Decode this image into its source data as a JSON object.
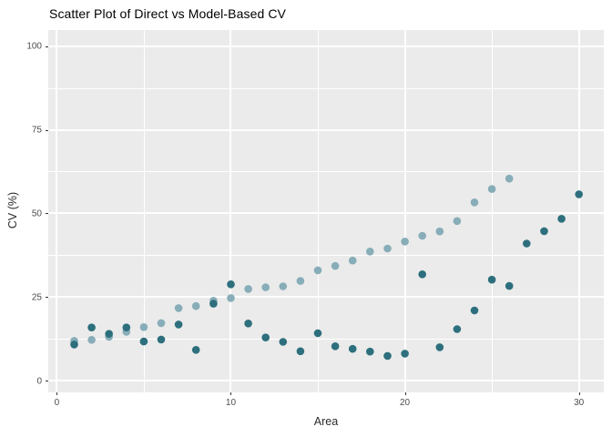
{
  "chart_data": {
    "type": "scatter",
    "title": "Scatter Plot of Direct vs Model-Based CV",
    "xlabel": "Area",
    "ylabel": "CV (%)",
    "xlim": [
      -0.49,
      31.43
    ],
    "ylim": [
      -3.5,
      104.8
    ],
    "x_ticks": [
      0,
      10,
      20,
      30
    ],
    "y_ticks": [
      0,
      25,
      50,
      75,
      100
    ],
    "x_minor_ticks": [
      5,
      15,
      25
    ],
    "y_minor_ticks": [
      12.5,
      37.5,
      62.5,
      87.5
    ],
    "grid": true,
    "legend_position": "none",
    "panel_background": "#ebebeb",
    "gridline_color": "#ffffff",
    "series": [
      {
        "name": "Model-Based",
        "color": "#87adb8",
        "x": [
          1,
          2,
          3,
          4,
          5,
          6,
          7,
          8,
          9,
          10,
          11,
          12,
          13,
          14,
          15,
          16,
          17,
          18,
          19,
          20,
          21,
          22,
          23,
          24,
          25,
          26
        ],
        "y": [
          11.9,
          12.2,
          13.1,
          14.6,
          16.0,
          17.2,
          21.7,
          22.3,
          23.9,
          24.7,
          27.4,
          27.9,
          28.2,
          29.8,
          33.0,
          34.3,
          35.9,
          38.6,
          39.5,
          41.6,
          43.3,
          44.6,
          47.7,
          53.3,
          57.3,
          60.4
        ]
      },
      {
        "name": "Direct",
        "color": "#2d6f7d",
        "x": [
          1,
          2,
          3,
          4,
          5,
          6,
          7,
          8,
          9,
          10,
          11,
          12,
          13,
          14,
          15,
          16,
          17,
          18,
          19,
          20,
          21,
          22,
          23,
          24,
          25,
          26,
          27,
          28,
          29,
          30
        ],
        "y": [
          10.8,
          15.9,
          14.0,
          15.9,
          11.7,
          12.3,
          16.8,
          9.2,
          23.0,
          28.8,
          17.1,
          12.9,
          11.6,
          8.8,
          14.2,
          10.3,
          9.5,
          8.7,
          7.4,
          8.1,
          31.8,
          10.0,
          15.4,
          21.0,
          30.2,
          28.3,
          41.0,
          44.7,
          48.4,
          55.7
        ]
      }
    ]
  }
}
